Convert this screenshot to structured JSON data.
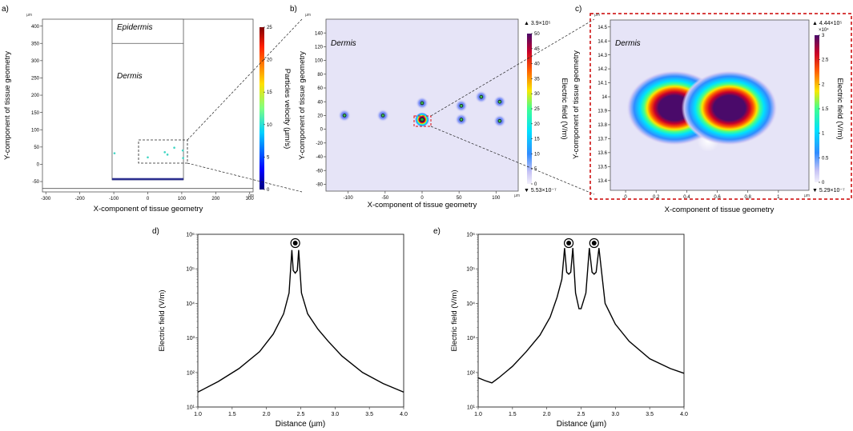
{
  "chart_data": [
    {
      "panel": "a",
      "type": "scatter",
      "panel_label": "a)",
      "xlabel": "X-component of tissue geometry",
      "ylabel": "Y-component of tissue geometry",
      "unit_label": "µm",
      "xticks": [
        "-300",
        "-200",
        "-100",
        "0",
        "100",
        "200",
        "300"
      ],
      "xlim": [
        -310,
        310
      ],
      "yticks": [
        "-50",
        "0",
        "50",
        "100",
        "150",
        "200",
        "250",
        "300",
        "350",
        "400"
      ],
      "ylim": [
        -80,
        420
      ],
      "regions": [
        "Epidermis",
        "Dermis"
      ],
      "epidermis_boundary_y": 350,
      "tissue_x_range": [
        -105,
        105
      ],
      "x": [
        -98,
        0,
        50,
        58,
        78,
        103,
        104
      ],
      "y": [
        32,
        20,
        35,
        28,
        48,
        40,
        18
      ],
      "colorbar": {
        "label": "Particles velocity (µm/s)",
        "ticks": [
          "0",
          "5",
          "10",
          "15",
          "20",
          "25"
        ],
        "range": [
          0,
          25
        ]
      }
    },
    {
      "panel": "b",
      "type": "heatmap",
      "panel_label": "b)",
      "xlabel": "X-component of tissue geometry",
      "ylabel": "Y-component of tissue geometry",
      "unit_label": "µm",
      "region": "Dermis",
      "xticks": [
        "-100",
        "-50",
        "0",
        "50",
        "100"
      ],
      "xlim": [
        -130,
        130
      ],
      "yticks": [
        "-80",
        "-60",
        "-40",
        "-20",
        "0",
        "20",
        "40",
        "60",
        "80",
        "100",
        "120",
        "140"
      ],
      "ylim": [
        -90,
        160
      ],
      "x": [
        -105,
        -53,
        0,
        0,
        53,
        53,
        80,
        105,
        105
      ],
      "y": [
        20,
        20,
        38,
        14,
        34,
        14,
        47,
        40,
        12
      ],
      "colorbar": {
        "label": "Electric field (V/m)",
        "ticks": [
          "0",
          "5",
          "10",
          "15",
          "20",
          "25",
          "30",
          "35",
          "40",
          "45",
          "50"
        ],
        "range": [
          0,
          50
        ],
        "max_label": "▲ 3.9×10⁵",
        "min_label": "▼ 5.53×10⁻⁷"
      }
    },
    {
      "panel": "c",
      "type": "heatmap",
      "panel_label": "c)",
      "xlabel": "X-component of tissue geometry",
      "ylabel": "Y-component of tissue geometry",
      "unit_label": "µm",
      "region": "Dermis",
      "xticks": [
        "0",
        "0.2",
        "0.4",
        "0.6",
        "0.8",
        "1"
      ],
      "xlim": [
        -0.1,
        1.2
      ],
      "yticks": [
        "13.4",
        "13.5",
        "13.6",
        "13.7",
        "13.8",
        "13.9",
        "14",
        "14.1",
        "14.2",
        "14.3",
        "14.4",
        "14.5"
      ],
      "ylim": [
        13.33,
        14.55
      ],
      "x": [
        0.32,
        0.68
      ],
      "y": [
        13.92,
        13.92
      ],
      "colorbar": {
        "label": "Electric field (V/m)",
        "ticks": [
          "0",
          "0.5",
          "1",
          "1.5",
          "2",
          "2.5",
          "3"
        ],
        "range": [
          0,
          3
        ],
        "multiplier": "×10⁴",
        "max_label": "▲ 4.44×10⁵",
        "min_label": "▼ 5.29×10⁻⁷"
      }
    },
    {
      "panel": "d",
      "type": "line",
      "panel_label": "d)",
      "xlabel": "Distance (µm)",
      "ylabel": "Electric field (V/m)",
      "xlim": [
        1.0,
        4.0
      ],
      "ylim": [
        10,
        1000000
      ],
      "yscale": "log",
      "xticks": [
        "1.0",
        "1.5",
        "2.0",
        "2.5",
        "3.0",
        "3.5",
        "4.0"
      ],
      "yticks": [
        "10¹",
        "10²",
        "10³",
        "10⁴",
        "10⁵",
        "10⁶"
      ],
      "particles_x": [
        2.42
      ],
      "x": [
        1.0,
        1.3,
        1.6,
        1.9,
        2.1,
        2.25,
        2.33,
        2.37,
        2.39,
        2.42,
        2.45,
        2.47,
        2.51,
        2.6,
        2.75,
        2.9,
        3.1,
        3.4,
        3.7,
        4.0
      ],
      "y": [
        27,
        55,
        130,
        400,
        1300,
        5000,
        20000,
        350000,
        90000,
        75000,
        90000,
        350000,
        20000,
        5000,
        1800,
        800,
        300,
        100,
        48,
        27
      ]
    },
    {
      "panel": "e",
      "type": "line",
      "panel_label": "e)",
      "xlabel": "Distance (µm)",
      "ylabel": "Electric field (V/m)",
      "xlim": [
        1.0,
        4.0
      ],
      "ylim": [
        10,
        1000000
      ],
      "yscale": "log",
      "xticks": [
        "1.0",
        "1.5",
        "2.0",
        "2.5",
        "3.0",
        "3.5",
        "4.0"
      ],
      "yticks": [
        "10¹",
        "10²",
        "10³",
        "10⁴",
        "10⁵",
        "10⁶"
      ],
      "particles_x": [
        2.32,
        2.69
      ],
      "x": [
        1.0,
        1.1,
        1.2,
        1.3,
        1.5,
        1.7,
        1.9,
        2.05,
        2.15,
        2.22,
        2.26,
        2.29,
        2.32,
        2.35,
        2.38,
        2.42,
        2.47,
        2.5,
        2.57,
        2.62,
        2.66,
        2.69,
        2.72,
        2.76,
        2.85,
        3.0,
        3.2,
        3.5,
        3.8,
        4.0
      ],
      "y": [
        70,
        58,
        50,
        70,
        150,
        400,
        1200,
        4000,
        15000,
        50000,
        400000,
        80000,
        70000,
        80000,
        400000,
        20000,
        7000,
        7000,
        20000,
        400000,
        80000,
        70000,
        80000,
        400000,
        10000,
        2500,
        800,
        250,
        130,
        95
      ]
    }
  ]
}
